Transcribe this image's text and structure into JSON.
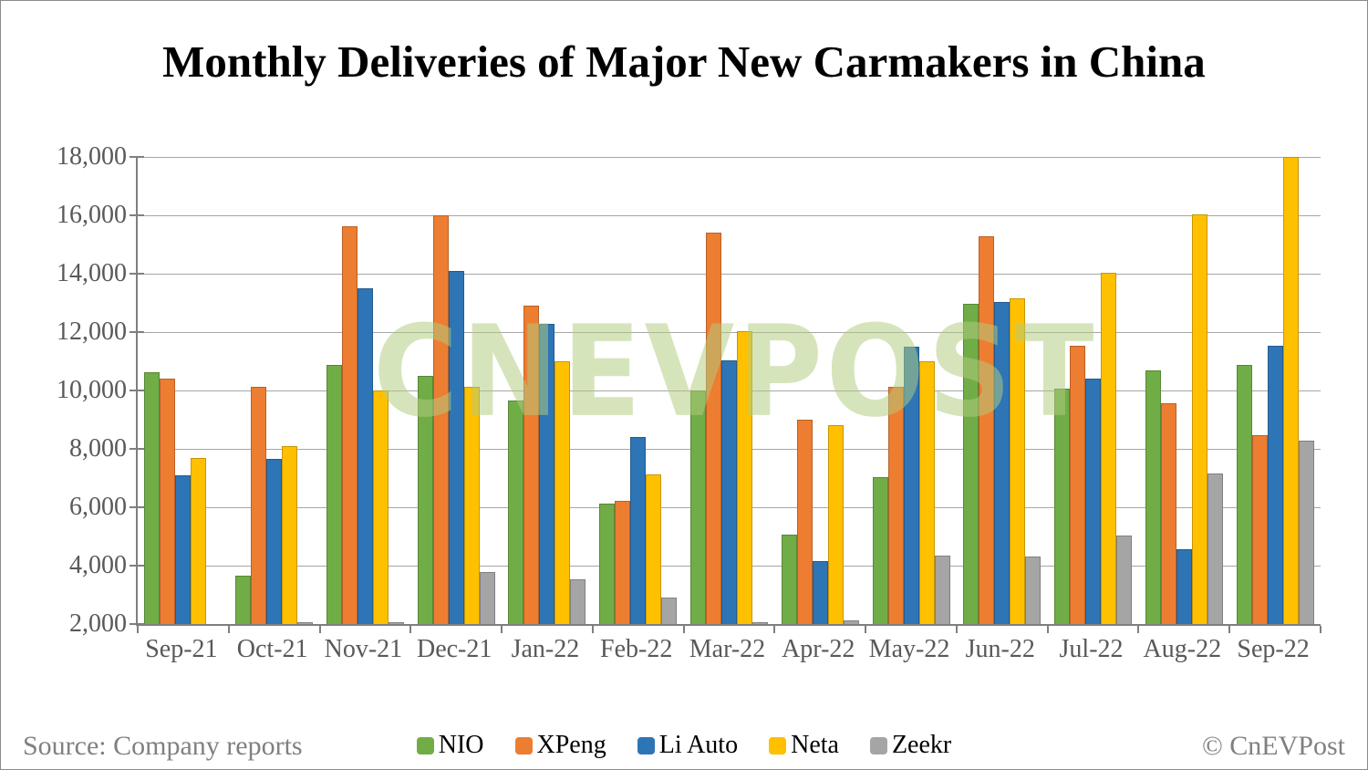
{
  "title": "Monthly Deliveries of Major New Carmakers in China",
  "footer": {
    "source": "Source: Company reports",
    "copyright": "© CnEVPost"
  },
  "watermark": "CNEVPOST",
  "colors": {
    "nio_green": "#70AD47",
    "xpeng_orange": "#ED7D31",
    "liauto_blue": "#2E75B6",
    "neta_yellow": "#FFC000",
    "zeekr_gray": "#A5A5A5",
    "gridline": "#A6A6A6",
    "axis": "#7F7F7F",
    "tick_label": "#595959",
    "footer_text": "#808080"
  },
  "chart_data": {
    "type": "bar",
    "title": "Monthly Deliveries of Major New Carmakers in China",
    "xlabel": "",
    "ylabel": "",
    "categories": [
      "Sep-21",
      "Oct-21",
      "Nov-21",
      "Dec-21",
      "Jan-22",
      "Feb-22",
      "Mar-22",
      "Apr-22",
      "May-22",
      "Jun-22",
      "Jul-22",
      "Aug-22",
      "Sep-22"
    ],
    "series": [
      {
        "name": "NIO",
        "color": "#70AD47",
        "values": [
          10628,
          3667,
          10878,
          10489,
          9652,
          6131,
          9985,
          5074,
          7024,
          12961,
          10052,
          10677,
          10878
        ]
      },
      {
        "name": "XPeng",
        "color": "#ED7D31",
        "values": [
          10412,
          10138,
          15613,
          16000,
          12922,
          6225,
          15414,
          9002,
          10125,
          15295,
          11524,
          9578,
          8468
        ]
      },
      {
        "name": "Li Auto",
        "color": "#2E75B6",
        "values": [
          7094,
          7649,
          13485,
          14087,
          12268,
          8414,
          11034,
          4167,
          11496,
          13024,
          10422,
          4571,
          11531
        ]
      },
      {
        "name": "Neta",
        "color": "#FFC000",
        "values": [
          7699,
          8107,
          10013,
          10127,
          11009,
          7117,
          12026,
          8813,
          11009,
          13157,
          14037,
          16017,
          18005
        ]
      },
      {
        "name": "Zeekr",
        "color": "#A5A5A5",
        "values": [
          0,
          199,
          2012,
          3796,
          3530,
          2916,
          1795,
          2137,
          4330,
          4302,
          5022,
          7166,
          8276
        ]
      }
    ],
    "ylim": [
      2000,
      18000
    ],
    "ytick_step": 2000,
    "grid": true,
    "legend_position": "bottom"
  }
}
